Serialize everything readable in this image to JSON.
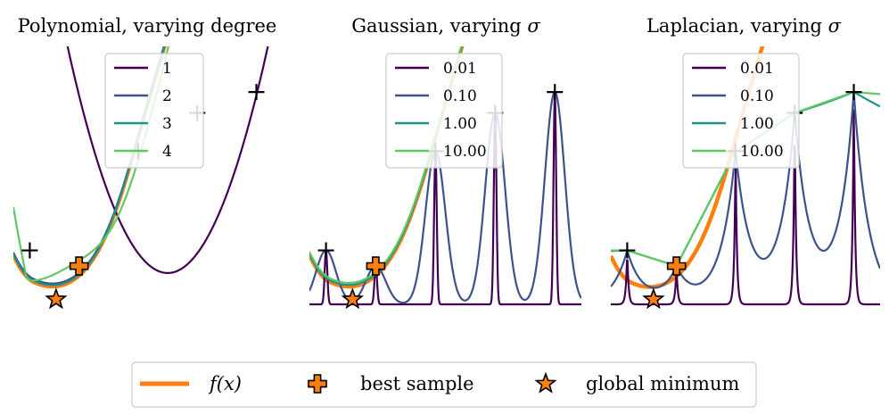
{
  "chart_data": [
    {
      "type": "line",
      "title": "Polynomial, varying degree",
      "legend_title_var": "degree",
      "legend_position": "top-right",
      "series": [
        {
          "name": "1",
          "color": "#440154"
        },
        {
          "name": "2",
          "color": "#3b528b"
        },
        {
          "name": "3",
          "color": "#21918c"
        },
        {
          "name": "4",
          "color": "#5ec962"
        }
      ],
      "axes_visible": false
    },
    {
      "type": "line",
      "title": "Gaussian, varying σ",
      "legend_position": "top-right",
      "series": [
        {
          "name": "0.01",
          "color": "#440154"
        },
        {
          "name": "0.10",
          "color": "#3b528b"
        },
        {
          "name": "1.00",
          "color": "#21918c"
        },
        {
          "name": "10.00",
          "color": "#5ec962"
        }
      ],
      "axes_visible": false
    },
    {
      "type": "line",
      "title": "Laplacian, varying σ",
      "legend_position": "top-right",
      "series": [
        {
          "name": "0.01",
          "color": "#440154"
        },
        {
          "name": "0.10",
          "color": "#3b528b"
        },
        {
          "name": "1.00",
          "color": "#21918c"
        },
        {
          "name": "10.00",
          "color": "#5ec962"
        }
      ],
      "axes_visible": false
    }
  ],
  "samples": [
    {
      "x": 0.05,
      "f": 1.55
    },
    {
      "x": 0.2,
      "f": 1.1
    },
    {
      "x": 0.38,
      "f": 4.4
    },
    {
      "x": 0.56,
      "f": 5.5
    },
    {
      "x": 0.74,
      "f": 6.1
    }
  ],
  "best_sample": {
    "x": 0.2,
    "f": 1.1
  },
  "global_minimum": {
    "x": 0.13,
    "f": 0.45
  },
  "colors": {
    "objective": "#ff7f0e",
    "marker_edge": "#000000"
  },
  "bottom_legend": {
    "objective_label": "f(x)",
    "best_label": "best sample",
    "minimum_label": "global minimum"
  }
}
